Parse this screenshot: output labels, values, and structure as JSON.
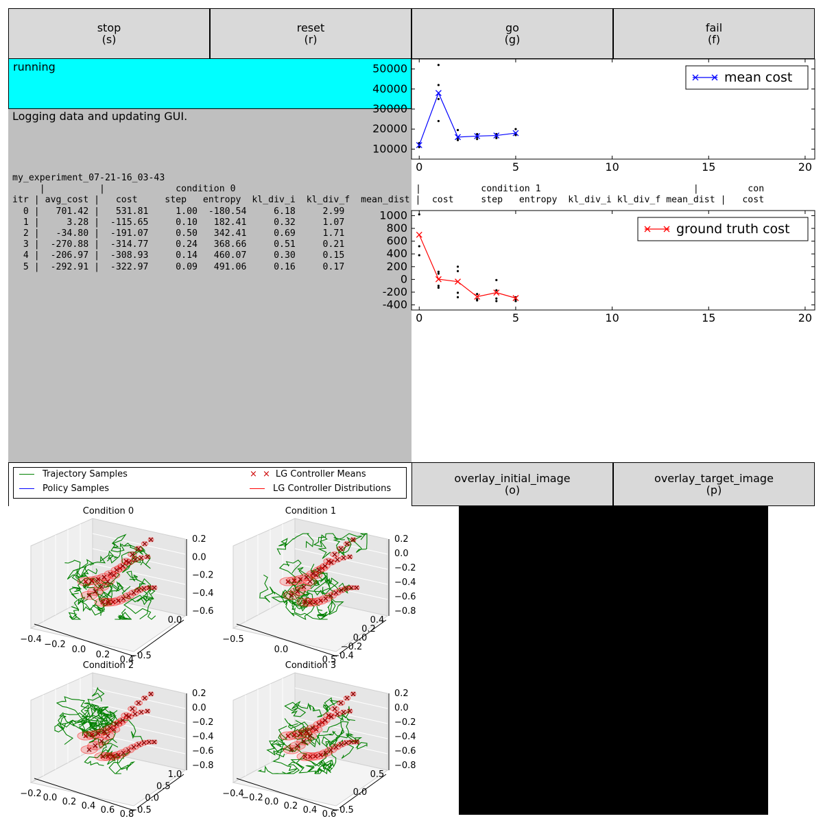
{
  "buttons": [
    {
      "label": "stop",
      "key": "(s)"
    },
    {
      "label": "reset",
      "key": "(r)"
    },
    {
      "label": "go",
      "key": "(g)"
    },
    {
      "label": "fail",
      "key": "(f)"
    }
  ],
  "status": {
    "text": "running",
    "color": "#00ffff"
  },
  "output": {
    "message": "Logging data and updating GUI."
  },
  "log_table": {
    "experiment": "my_experiment_07-21-16_03-43",
    "condition_header_a": "     |          |             condition 0",
    "condition_header_b": "|           condition 1                            |         con",
    "column_header_a": "itr | avg_cost |   cost     step   entropy  kl_div_i  kl_div_f  mean_dist |",
    "column_header_b": "   cost     step   entropy  kl_div_i kl_div_f mean_dist |   cost",
    "rows": [
      "  0 |   701.42 |   531.81     1.00  -180.54     6.18     2.99",
      "  1 |     3.28 |  -115.65     0.10   182.41     0.32     1.07",
      "  2 |   -34.80 |  -191.07     0.50   342.41     0.69     1.71",
      "  3 |  -270.88 |  -314.77     0.24   368.66     0.51     0.21",
      "  4 |  -206.97 |  -308.93     0.14   460.07     0.30     0.15",
      "  5 |  -292.91 |  -322.97     0.09   491.06     0.16     0.17"
    ]
  },
  "chart_data": [
    {
      "type": "line",
      "legend": "mean cost",
      "legend_position": "top-right",
      "color": "#0000ff",
      "x": [
        0,
        1,
        2,
        3,
        4,
        5
      ],
      "y": [
        12000,
        38000,
        16000,
        16500,
        16800,
        18000
      ],
      "samples": [
        [
          0,
          11000
        ],
        [
          0,
          12500
        ],
        [
          0,
          13000
        ],
        [
          1,
          24000
        ],
        [
          1,
          35000
        ],
        [
          1,
          42000
        ],
        [
          1,
          52000
        ],
        [
          2,
          14500
        ],
        [
          2,
          15500
        ],
        [
          2,
          19500
        ],
        [
          3,
          15000
        ],
        [
          3,
          16000
        ],
        [
          3,
          17500
        ],
        [
          4,
          15500
        ],
        [
          4,
          16500
        ],
        [
          4,
          17500
        ],
        [
          5,
          17000
        ],
        [
          5,
          18000
        ],
        [
          5,
          20000
        ]
      ],
      "xlim": [
        -0.4,
        20.5
      ],
      "ylim": [
        5000,
        55000
      ],
      "xticks": [
        0,
        5,
        10,
        15,
        20
      ],
      "yticks": [
        10000,
        20000,
        30000,
        40000,
        50000
      ]
    },
    {
      "type": "line",
      "legend": "ground truth cost",
      "legend_position": "top-right",
      "color": "#ff0000",
      "x": [
        0,
        1,
        2,
        3,
        4,
        5
      ],
      "y": [
        700,
        3,
        -35,
        -271,
        -207,
        -293
      ],
      "samples": [
        [
          0,
          380
        ],
        [
          0,
          520
        ],
        [
          0,
          1020
        ],
        [
          1,
          -130
        ],
        [
          1,
          -100
        ],
        [
          1,
          120
        ],
        [
          1,
          90
        ],
        [
          2,
          -280
        ],
        [
          2,
          -210
        ],
        [
          2,
          130
        ],
        [
          2,
          200
        ],
        [
          3,
          -330
        ],
        [
          3,
          -310
        ],
        [
          3,
          -230
        ],
        [
          4,
          -340
        ],
        [
          4,
          -300
        ],
        [
          4,
          -170
        ],
        [
          4,
          -10
        ],
        [
          5,
          -340
        ],
        [
          5,
          -310
        ],
        [
          5,
          -280
        ]
      ],
      "xlim": [
        -0.4,
        20.5
      ],
      "ylim": [
        -480,
        1080
      ],
      "xticks": [
        0,
        5,
        10,
        15,
        20
      ],
      "yticks": [
        -400,
        -200,
        0,
        200,
        400,
        600,
        800,
        1000
      ]
    }
  ],
  "trajectory_legend": [
    {
      "label": "Trajectory Samples",
      "color": "#008000",
      "kind": "line"
    },
    {
      "label": "LG Controller Means",
      "color": "#cc0000",
      "kind": "x"
    },
    {
      "label": "Policy Samples",
      "color": "#0000ff",
      "kind": "line"
    },
    {
      "label": "LG Controller Distributions",
      "color": "#ff0000",
      "kind": "line"
    }
  ],
  "trajectory_plots": [
    {
      "title": "Condition 0",
      "zticks": [
        "0.2",
        "0.0",
        "−0.2",
        "−0.4",
        "−0.6"
      ],
      "xticks": [
        "−0.4",
        "−0.2",
        "0.0",
        "0.2",
        "0.4"
      ],
      "yticks": [
        "0.0",
        "−0.5"
      ]
    },
    {
      "title": "Condition 1",
      "zticks": [
        "0.2",
        "0.0",
        "−0.2",
        "−0.4",
        "−0.6",
        "−0.8"
      ],
      "xticks": [
        "−0.5",
        "0.0",
        "0.5"
      ],
      "yticks": [
        "0.4",
        "0.2",
        "0.0",
        "−0.2",
        "−0.4"
      ]
    },
    {
      "title": "Condition 2",
      "zticks": [
        "0.2",
        "0.0",
        "−0.2",
        "−0.4",
        "−0.6",
        "−0.8"
      ],
      "xticks": [
        "−0.2",
        "0.0",
        "0.2",
        "0.4",
        "0.6",
        "0.8"
      ],
      "yticks": [
        "1.0",
        "0.5",
        "0.0",
        "−0.5"
      ]
    },
    {
      "title": "Condition 3",
      "zticks": [
        "0.2",
        "0.0",
        "−0.2",
        "−0.4",
        "−0.6",
        "−0.8"
      ],
      "xticks": [
        "−0.4",
        "−0.2",
        "0.0",
        "0.2",
        "0.4",
        "0.6"
      ],
      "yticks": [
        "0.5",
        "0.0",
        "−0.5"
      ]
    }
  ],
  "image_buttons": [
    {
      "label": "overlay_initial_image",
      "key": "(o)"
    },
    {
      "label": "overlay_target_image",
      "key": "(p)"
    }
  ]
}
